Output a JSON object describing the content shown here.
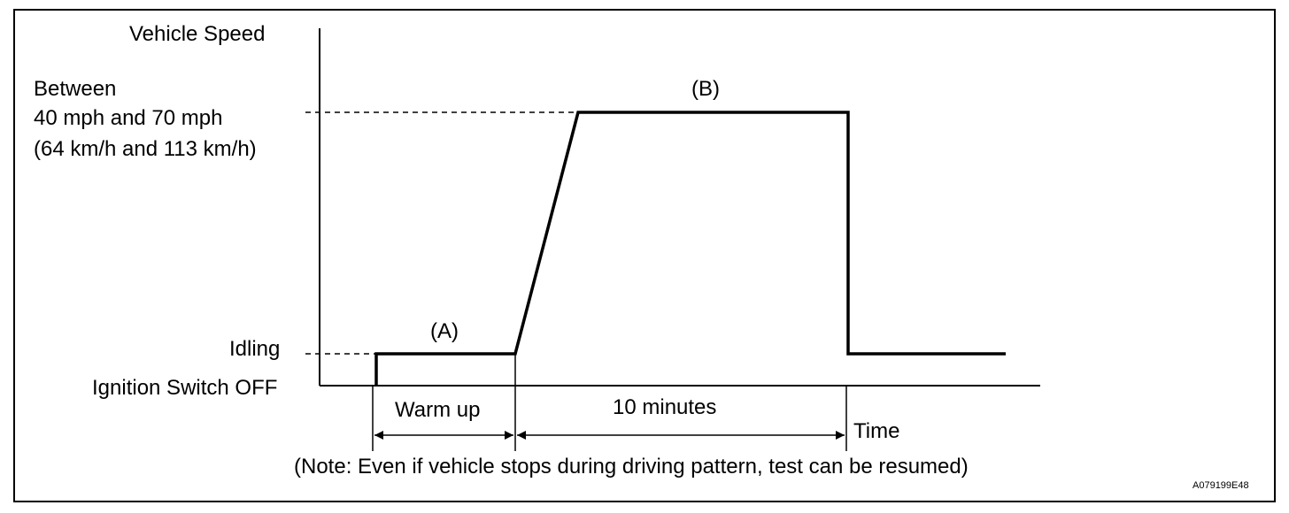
{
  "diagram": {
    "y_axis_label": "Vehicle Speed",
    "speed_range": {
      "line1": "Between",
      "line2": "40 mph and 70 mph",
      "line3": "(64 km/h and 113 km/h)"
    },
    "idling_label": "Idling",
    "ignition_off_label": "Ignition Switch OFF",
    "segment_a_label": "(A)",
    "segment_b_label": "(B)",
    "warm_up_label": "Warm up",
    "duration_label": "10 minutes",
    "x_axis_label": "Time",
    "note": "(Note: Even if vehicle stops during driving pattern, test can be resumed)",
    "figure_id": "A079199E48"
  }
}
